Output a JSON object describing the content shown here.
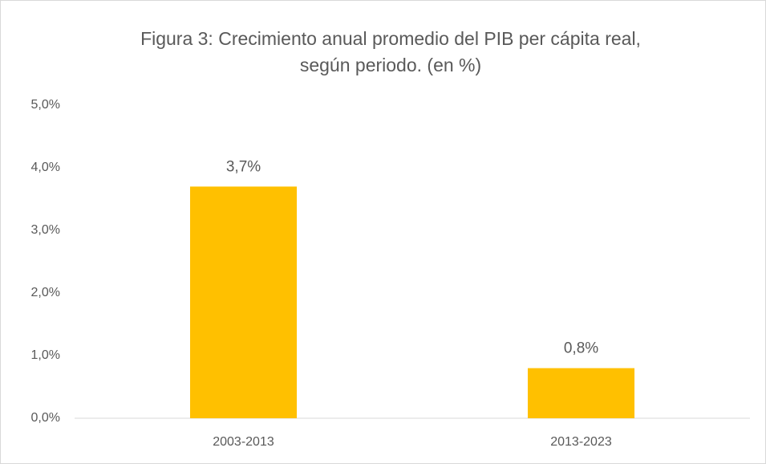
{
  "chart_data": {
    "type": "bar",
    "title": [
      "Figura 3: Crecimiento anual promedio del PIB per cápita real,",
      "según periodo. (en %)"
    ],
    "categories": [
      "2003-2013",
      "2013-2023"
    ],
    "values": [
      3.7,
      0.8
    ],
    "value_labels": [
      "3,7%",
      "0,8%"
    ],
    "color": "#ffc000",
    "ylim": [
      0,
      5
    ],
    "yticks": [
      {
        "value": 0,
        "label": "0,0%"
      },
      {
        "value": 1,
        "label": "1,0%"
      },
      {
        "value": 2,
        "label": "2,0%"
      },
      {
        "value": 3,
        "label": "3,0%"
      },
      {
        "value": 4,
        "label": "4,0%"
      },
      {
        "value": 5,
        "label": "5,0%"
      }
    ],
    "grid": false
  }
}
